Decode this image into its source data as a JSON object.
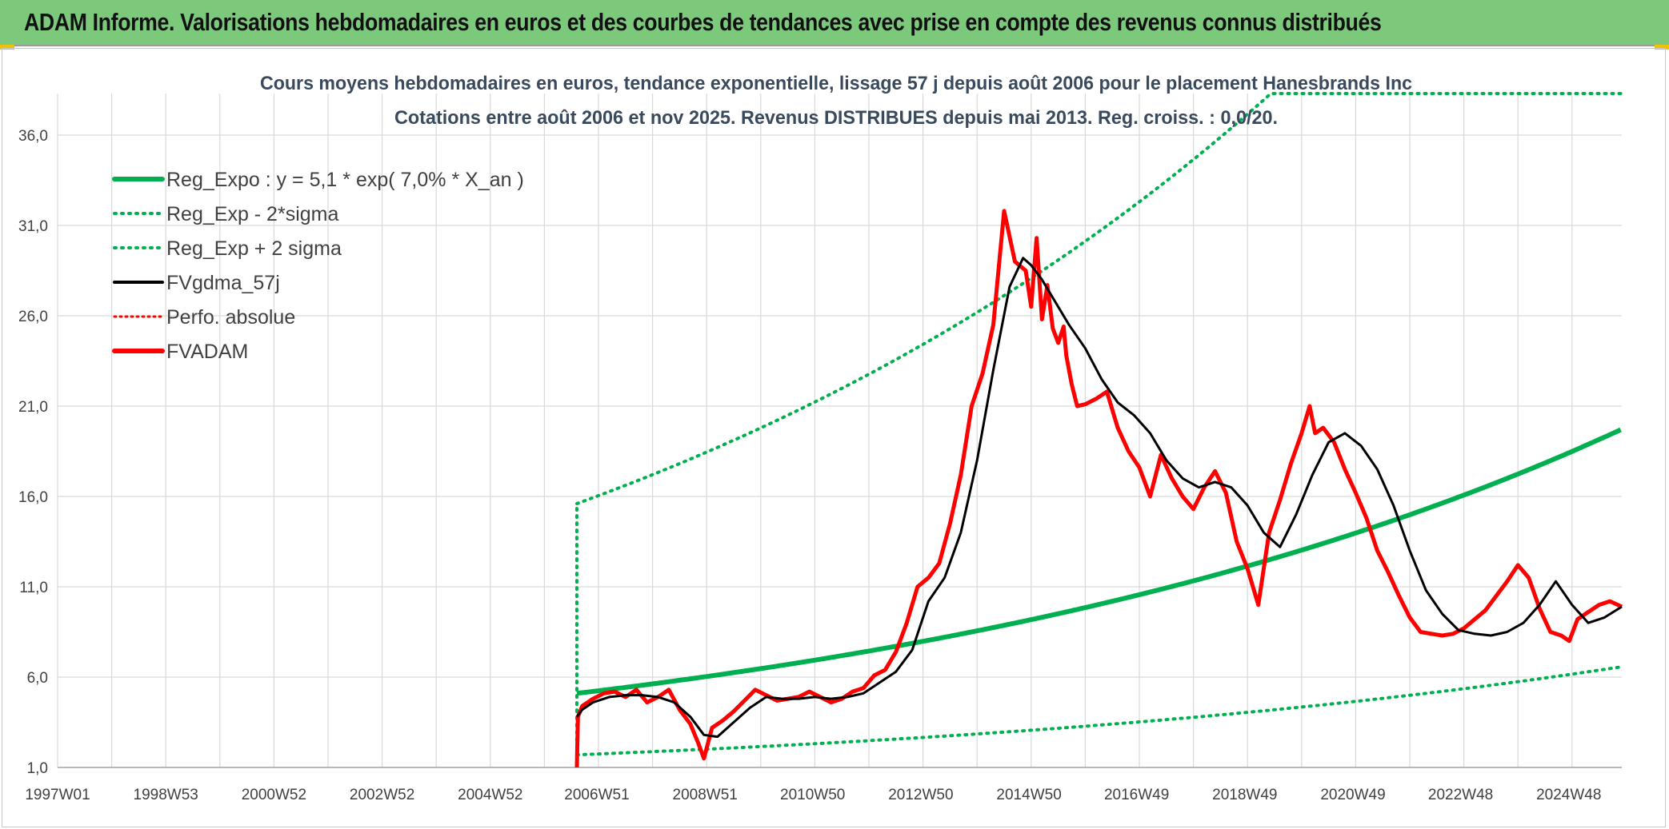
{
  "header": {
    "banner_title": "ADAM Informe. Valorisations hebdomadaires en euros et des courbes de tendances avec prise en compte des revenus connus distribués"
  },
  "colors": {
    "banner_bg": "#7cc97c",
    "reg_expo": "#00b050",
    "reg_sigma": "#00b050",
    "fvgdma": "#000000",
    "perfo": "#ff0000",
    "fvadam": "#ff0000",
    "grid": "#d9d9d9"
  },
  "chart_data": {
    "type": "line",
    "title_line1": "Cours moyens hebdomadaires en euros, tendance exponentielle, lissage 57 j depuis août 2006 pour le placement Hanesbrands Inc",
    "title_line2": "Cotations entre août 2006 et nov 2025. Revenus DISTRIBUES depuis mai 2013. Reg. croiss. : 0,0/20.",
    "ylim": [
      1,
      38.3
    ],
    "yticks": [
      1,
      6,
      11,
      16,
      21,
      26,
      31,
      36
    ],
    "ytick_labels": [
      "1,0",
      "6,0",
      "11,0",
      "16,0",
      "21,0",
      "26,0",
      "31,0",
      "36,0"
    ],
    "xlim": [
      1997.0,
      2025.92
    ],
    "xticks": [
      {
        "x": 1997.0,
        "label": "1997W01"
      },
      {
        "x": 1999.0,
        "label": "1998W53"
      },
      {
        "x": 2001.0,
        "label": "2000W52"
      },
      {
        "x": 2003.0,
        "label": "2002W52"
      },
      {
        "x": 2005.0,
        "label": "2004W52"
      },
      {
        "x": 2006.97,
        "label": "2006W51"
      },
      {
        "x": 2008.97,
        "label": "2008W51"
      },
      {
        "x": 2010.96,
        "label": "2010W50"
      },
      {
        "x": 2012.96,
        "label": "2012W50"
      },
      {
        "x": 2014.96,
        "label": "2014W50"
      },
      {
        "x": 2016.95,
        "label": "2016W49"
      },
      {
        "x": 2018.95,
        "label": "2018W49"
      },
      {
        "x": 2020.95,
        "label": "2020W49"
      },
      {
        "x": 2022.94,
        "label": "2022W48"
      },
      {
        "x": 2024.94,
        "label": "2024W48"
      }
    ],
    "legend": {
      "placement": "top-left",
      "entries": [
        {
          "key": "reg_expo",
          "label": "Reg_Expo : y = 5,1 * exp( 7,0% *  X_an )",
          "style": "solid-thick"
        },
        {
          "key": "reg_minus",
          "label": "Reg_Exp - 2*sigma",
          "style": "dotted"
        },
        {
          "key": "reg_plus",
          "label": "Reg_Exp + 2 sigma",
          "style": "dotted"
        },
        {
          "key": "fvgdma",
          "label": "FVgdma_57j",
          "style": "solid"
        },
        {
          "key": "perfo",
          "label": "Perfo. absolue",
          "style": "dotted"
        },
        {
          "key": "fvadam",
          "label": "FVADAM",
          "style": "solid-thick"
        }
      ]
    },
    "reg_expo": {
      "start_year": 2006.6,
      "end_year": 2025.92,
      "a": 5.1,
      "rate": 0.07
    },
    "reg_minus": {
      "start_year": 2006.6,
      "end_year": 2025.92,
      "a": 1.7,
      "rate": 0.07
    },
    "reg_plus": {
      "start_year": 2006.6,
      "end_year": 2025.92,
      "a": 15.6,
      "rate": 0.07,
      "clip_value": 38.3
    },
    "fvadam": {
      "x": [
        2006.6,
        2006.62,
        2006.7,
        2006.9,
        2007.1,
        2007.3,
        2007.5,
        2007.7,
        2007.9,
        2008.1,
        2008.3,
        2008.5,
        2008.7,
        2008.85,
        2008.95,
        2009.1,
        2009.3,
        2009.5,
        2009.7,
        2009.9,
        2010.1,
        2010.3,
        2010.5,
        2010.7,
        2010.9,
        2011.1,
        2011.3,
        2011.5,
        2011.7,
        2011.9,
        2012.1,
        2012.3,
        2012.5,
        2012.7,
        2012.9,
        2013.1,
        2013.3,
        2013.5,
        2013.7,
        2013.9,
        2014.1,
        2014.3,
        2014.5,
        2014.7,
        2014.9,
        2015.0,
        2015.1,
        2015.2,
        2015.3,
        2015.4,
        2015.5,
        2015.6,
        2015.65,
        2015.75,
        2015.85,
        2016.0,
        2016.2,
        2016.4,
        2016.6,
        2016.8,
        2017.0,
        2017.2,
        2017.4,
        2017.6,
        2017.8,
        2018.0,
        2018.2,
        2018.4,
        2018.6,
        2018.8,
        2019.0,
        2019.2,
        2019.4,
        2019.6,
        2019.8,
        2020.0,
        2020.15,
        2020.25,
        2020.4,
        2020.6,
        2020.8,
        2021.0,
        2021.2,
        2021.4,
        2021.6,
        2021.8,
        2022.0,
        2022.2,
        2022.4,
        2022.6,
        2022.8,
        2023.0,
        2023.2,
        2023.4,
        2023.6,
        2023.8,
        2024.0,
        2024.2,
        2024.4,
        2024.6,
        2024.8,
        2024.95,
        2025.1,
        2025.3,
        2025.5,
        2025.7,
        2025.92
      ],
      "y": [
        1.0,
        3.8,
        4.4,
        4.8,
        5.1,
        5.2,
        4.9,
        5.3,
        4.6,
        4.9,
        5.3,
        4.2,
        3.4,
        2.3,
        1.5,
        3.2,
        3.6,
        4.1,
        4.7,
        5.3,
        5.0,
        4.7,
        4.8,
        4.9,
        5.2,
        4.9,
        4.6,
        4.8,
        5.2,
        5.4,
        6.1,
        6.4,
        7.4,
        9.0,
        11.0,
        11.5,
        12.3,
        14.5,
        17.2,
        21.0,
        22.8,
        25.5,
        31.8,
        29.0,
        28.5,
        26.5,
        30.3,
        25.8,
        27.7,
        25.3,
        24.5,
        25.4,
        23.8,
        22.2,
        21.0,
        21.1,
        21.4,
        21.8,
        19.8,
        18.5,
        17.6,
        16.0,
        18.3,
        17.0,
        16.0,
        15.3,
        16.5,
        17.4,
        16.2,
        13.5,
        12.0,
        10.0,
        14.0,
        15.8,
        17.8,
        19.5,
        21.0,
        19.5,
        19.8,
        19.0,
        17.5,
        16.2,
        14.8,
        13.0,
        11.8,
        10.5,
        9.3,
        8.5,
        8.4,
        8.3,
        8.4,
        8.7,
        9.2,
        9.7,
        10.5,
        11.3,
        12.2,
        11.5,
        9.8,
        8.5,
        8.3,
        8.0,
        9.2,
        9.6,
        10.0,
        10.2,
        9.9
      ]
    },
    "fvgdma": {
      "x": [
        2006.6,
        2006.7,
        2006.9,
        2007.2,
        2007.5,
        2007.8,
        2008.1,
        2008.4,
        2008.7,
        2008.95,
        2009.2,
        2009.5,
        2009.8,
        2010.1,
        2010.4,
        2010.7,
        2011.0,
        2011.3,
        2011.6,
        2011.9,
        2012.2,
        2012.5,
        2012.8,
        2013.1,
        2013.4,
        2013.7,
        2014.0,
        2014.3,
        2014.6,
        2014.85,
        2015.0,
        2015.2,
        2015.4,
        2015.7,
        2016.0,
        2016.3,
        2016.6,
        2016.9,
        2017.2,
        2017.5,
        2017.8,
        2018.1,
        2018.4,
        2018.7,
        2019.0,
        2019.3,
        2019.6,
        2019.9,
        2020.2,
        2020.5,
        2020.8,
        2021.1,
        2021.4,
        2021.7,
        2022.0,
        2022.3,
        2022.6,
        2022.9,
        2023.2,
        2023.5,
        2023.8,
        2024.1,
        2024.4,
        2024.7,
        2025.0,
        2025.3,
        2025.6,
        2025.92
      ],
      "y": [
        3.8,
        4.2,
        4.6,
        4.9,
        5.0,
        5.0,
        4.9,
        4.6,
        3.8,
        2.8,
        2.7,
        3.5,
        4.3,
        4.9,
        4.8,
        4.8,
        4.9,
        4.8,
        4.9,
        5.1,
        5.7,
        6.3,
        7.5,
        10.2,
        11.5,
        14.0,
        18.0,
        23.0,
        27.6,
        29.2,
        28.8,
        28.0,
        27.0,
        25.5,
        24.2,
        22.5,
        21.2,
        20.5,
        19.5,
        18.0,
        17.0,
        16.5,
        16.8,
        16.5,
        15.5,
        14.0,
        13.2,
        15.0,
        17.2,
        19.0,
        19.5,
        18.8,
        17.5,
        15.5,
        13.0,
        10.8,
        9.5,
        8.6,
        8.4,
        8.3,
        8.5,
        9.0,
        10.0,
        11.3,
        10.0,
        9.0,
        9.3,
        9.9
      ]
    }
  }
}
